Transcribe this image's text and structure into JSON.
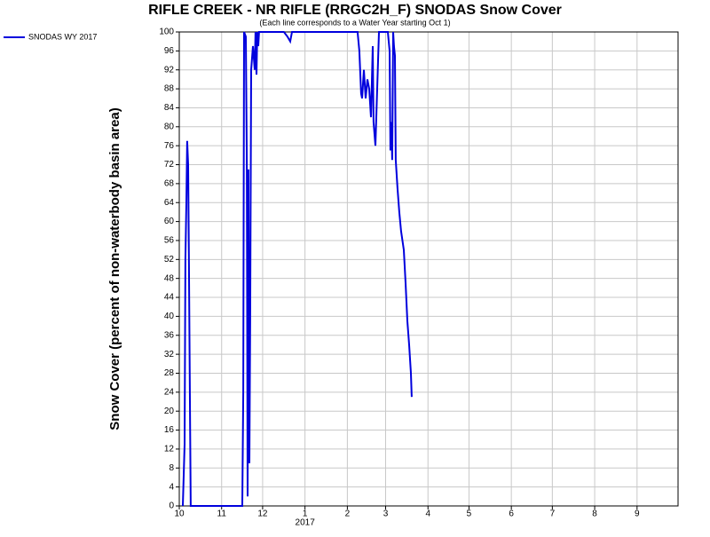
{
  "chart_data": {
    "type": "line",
    "title": "RIFLE CREEK - NR RIFLE (RRGC2H_F) SNODAS Snow Cover",
    "subtitle": "(Each line corresponds to a Water Year starting Oct 1)",
    "y_label": "Snow Cover (percent of non-waterbody basin area)",
    "x_year_label": "2017",
    "x": [
      2.6,
      3.9,
      4.5,
      5.2,
      5.8,
      6.5,
      7.1,
      7.8,
      8.4,
      46.1,
      46.8,
      47.4,
      48.7,
      49.4,
      50,
      50.6,
      51.3,
      51.9,
      52.6,
      53.9,
      55.2,
      55.8,
      56.5,
      57.1,
      57.8,
      58.4,
      76.6,
      79.2,
      81.2,
      82.5,
      130.5,
      131.8,
      133.1,
      133.8,
      135.1,
      136.4,
      137.7,
      139,
      140.3,
      141.6,
      142.2,
      143.5,
      144.8,
      146.1,
      152.6,
      153.9,
      154.5,
      155.2,
      155.8,
      156.5,
      157.1,
      157.8,
      158.4,
      159.7,
      161,
      162.3,
      164.3,
      165.6,
      166.9,
      168.2,
      169.5,
      170.1
    ],
    "series": [
      {
        "name": "SNODAS WY 2017",
        "color": "#0000dd",
        "values": [
          0,
          13,
          52,
          64,
          77,
          72,
          51,
          22,
          0,
          0,
          24,
          100,
          99,
          73,
          2,
          71,
          9,
          39,
          92,
          97,
          92,
          100,
          91,
          100,
          97,
          100,
          100,
          99,
          98,
          100,
          100,
          96,
          87,
          86,
          92,
          86,
          90,
          88,
          82,
          97,
          81,
          76,
          88,
          100,
          100,
          96,
          75,
          81,
          73,
          100,
          97,
          95,
          73,
          67,
          62,
          58,
          54,
          47,
          39,
          34,
          28,
          23
        ]
      }
    ],
    "xlim": [
      0,
      365
    ],
    "xticks": [
      {
        "value": 0,
        "label": "10"
      },
      {
        "value": 31,
        "label": "11"
      },
      {
        "value": 61,
        "label": "12"
      },
      {
        "value": 92,
        "label": "1"
      },
      {
        "value": 123,
        "label": "2"
      },
      {
        "value": 151,
        "label": "3"
      },
      {
        "value": 182,
        "label": "4"
      },
      {
        "value": 212,
        "label": "5"
      },
      {
        "value": 243,
        "label": "6"
      },
      {
        "value": 273,
        "label": "7"
      },
      {
        "value": 304,
        "label": "8"
      },
      {
        "value": 335,
        "label": "9"
      }
    ],
    "ylim": [
      0,
      100
    ],
    "yticks": [
      0,
      4,
      8,
      12,
      16,
      20,
      24,
      28,
      32,
      36,
      40,
      44,
      48,
      52,
      56,
      60,
      64,
      68,
      72,
      76,
      80,
      84,
      88,
      92,
      96,
      100
    ],
    "grid": true
  }
}
